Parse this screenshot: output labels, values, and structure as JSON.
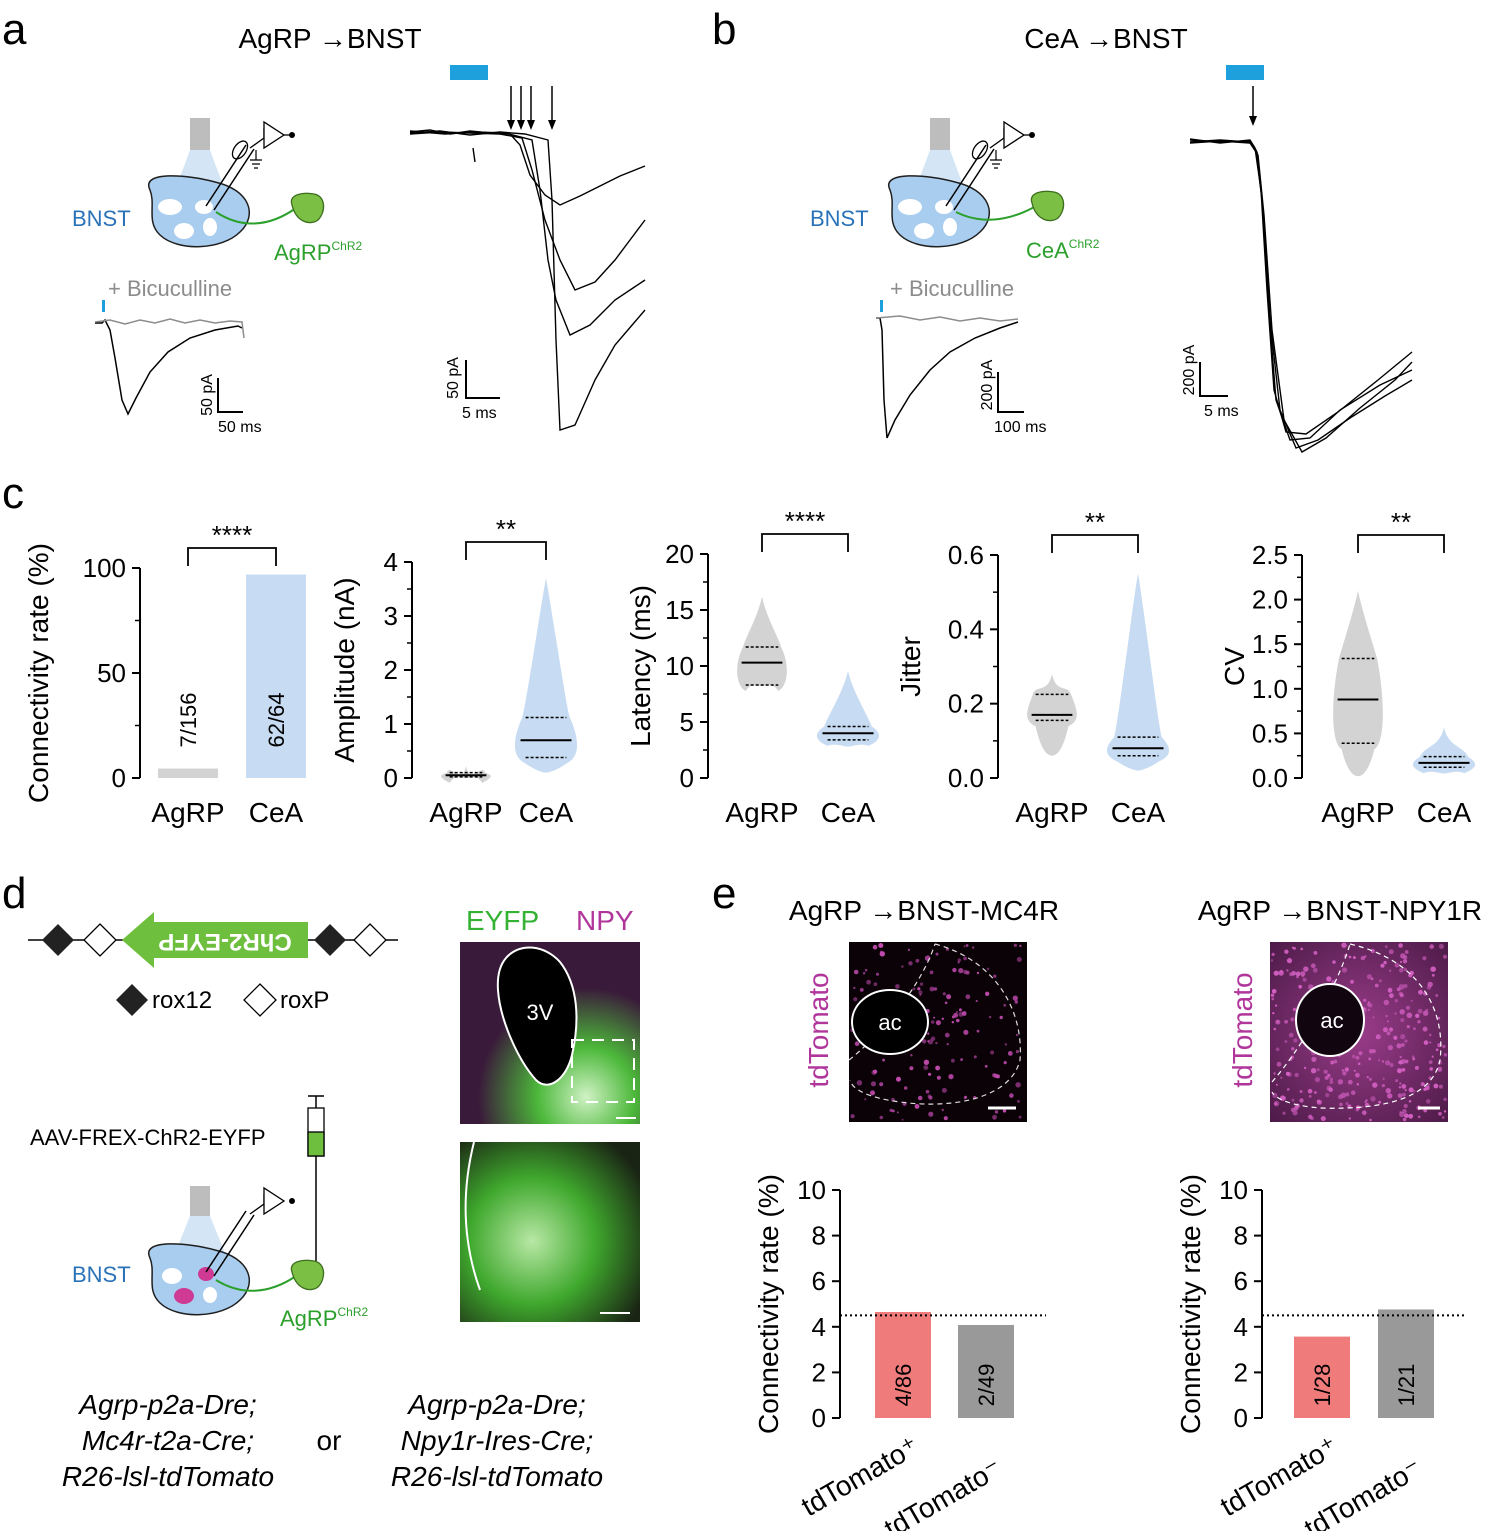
{
  "panel_letters": [
    "a",
    "b",
    "c",
    "d",
    "e"
  ],
  "panel_a": {
    "title": "AgRP →BNST",
    "region": "BNST",
    "source": "AgRP",
    "source_sup": "ChR2",
    "drug": "+ Bicuculline",
    "scale_left": {
      "y": "50 pA",
      "x": "50 ms"
    },
    "scale_right": {
      "y": "50 pA",
      "x": "5 ms"
    }
  },
  "panel_b": {
    "title": "CeA →BNST",
    "region": "BNST",
    "source": "CeA",
    "source_sup": "ChR2",
    "drug": "+ Bicuculline",
    "scale_left": {
      "y": "200 pA",
      "x": "100 ms"
    },
    "scale_right": {
      "y": "200 pA",
      "x": "5 ms"
    }
  },
  "panel_c": {
    "charts": [
      {
        "type": "bar",
        "ylabel": "Connectivity rate (%)",
        "categories": [
          "AgRP",
          "CeA"
        ],
        "values": [
          4.5,
          96.9
        ],
        "bar_labels": [
          "7/156",
          "62/64"
        ],
        "yticks": [
          "0",
          "50",
          "100"
        ],
        "ylim": [
          0,
          100
        ],
        "sig": "****"
      },
      {
        "type": "violin",
        "ylabel": "Amplitude (nA)",
        "categories": [
          "AgRP",
          "CeA"
        ],
        "yticks": [
          "0",
          "1",
          "2",
          "3",
          "4"
        ],
        "ylim": [
          0,
          4
        ],
        "median": [
          0.05,
          0.7
        ],
        "q1": [
          0.02,
          0.38
        ],
        "q3": [
          0.1,
          1.12
        ],
        "min": [
          0.0,
          0.1
        ],
        "max": [
          0.22,
          3.7
        ],
        "sig": "**"
      },
      {
        "type": "violin",
        "ylabel": "Latency (ms)",
        "categories": [
          "AgRP",
          "CeA"
        ],
        "yticks": [
          "0",
          "5",
          "10",
          "15",
          "20"
        ],
        "ylim": [
          0,
          20
        ],
        "median": [
          10.3,
          4.0
        ],
        "q1": [
          8.3,
          3.4
        ],
        "q3": [
          11.7,
          4.6
        ],
        "min": [
          8.2,
          2.8
        ],
        "max": [
          16.2,
          9.6
        ],
        "sig": "****"
      },
      {
        "type": "violin",
        "ylabel": "Jitter",
        "categories": [
          "AgRP",
          "CeA"
        ],
        "yticks": [
          "0.0",
          "0.2",
          "0.4",
          "0.6"
        ],
        "ylim": [
          0,
          0.6
        ],
        "median": [
          0.17,
          0.08
        ],
        "q1": [
          0.155,
          0.06
        ],
        "q3": [
          0.225,
          0.11
        ],
        "min": [
          0.06,
          0.02
        ],
        "max": [
          0.28,
          0.55
        ],
        "sig": "**"
      },
      {
        "type": "violin",
        "ylabel": "CV",
        "categories": [
          "AgRP",
          "CeA"
        ],
        "yticks": [
          "0.0",
          "0.5",
          "1.0",
          "1.5",
          "2.0",
          "2.5"
        ],
        "ylim": [
          0,
          2.5
        ],
        "median": [
          0.88,
          0.17
        ],
        "q1": [
          0.39,
          0.12
        ],
        "q3": [
          1.34,
          0.24
        ],
        "min": [
          0.02,
          0.05
        ],
        "max": [
          2.1,
          0.57
        ],
        "sig": "**"
      }
    ]
  },
  "panel_d": {
    "construct_label": "ChR2-EYFP",
    "legend": [
      "rox12",
      "roxP"
    ],
    "virus": "AAV-FREX-ChR2-EYFP",
    "region": "BNST",
    "source": "AgRP",
    "source_sup": "ChR2",
    "stain_labels": [
      "EYFP",
      "NPY"
    ],
    "ventricle": "3V",
    "genotype_left": [
      "Agrp-p2a-Dre;",
      "Mc4r-t2a-Cre;",
      "R26-lsl-tdTomato"
    ],
    "or": "or",
    "genotype_right": [
      "Agrp-p2a-Dre;",
      "Npy1r-Ires-Cre;",
      "R26-lsl-tdTomato"
    ]
  },
  "panel_e": {
    "charts": [
      {
        "type": "bar",
        "title": "AgRP →BNST-MC4R",
        "image_label": "tdTomato",
        "structure": "ac",
        "ylabel": "Connectivity rate (%)",
        "categories": [
          "tdTomato⁺",
          "tdTomato⁻"
        ],
        "values": [
          4.65,
          4.08
        ],
        "bar_labels": [
          "4/86",
          "2/49"
        ],
        "yticks": [
          "0",
          "2",
          "4",
          "6",
          "8",
          "10"
        ],
        "ylim": [
          0,
          10
        ],
        "reference_line": 4.5
      },
      {
        "type": "bar",
        "title": "AgRP →BNST-NPY1R",
        "image_label": "tdTomato",
        "structure": "ac",
        "ylabel": "Connectivity rate (%)",
        "categories": [
          "tdTomato⁺",
          "tdTomato⁻"
        ],
        "values": [
          3.57,
          4.76
        ],
        "bar_labels": [
          "1/28",
          "1/21"
        ],
        "yticks": [
          "0",
          "2",
          "4",
          "6",
          "8",
          "10"
        ],
        "ylim": [
          0,
          10
        ],
        "reference_line": 4.5
      }
    ]
  },
  "colors": {
    "blue_light": "#1ea0dc",
    "green": "#2ca02c",
    "magenta": "#b0369b",
    "agrp_grey": "#d3d3d3",
    "cea_blue": "#c7dcf2",
    "tdtomato_pos": "#f07b7b",
    "tdtomato_neg": "#999999",
    "bnst_blue": "#2a73b8"
  }
}
